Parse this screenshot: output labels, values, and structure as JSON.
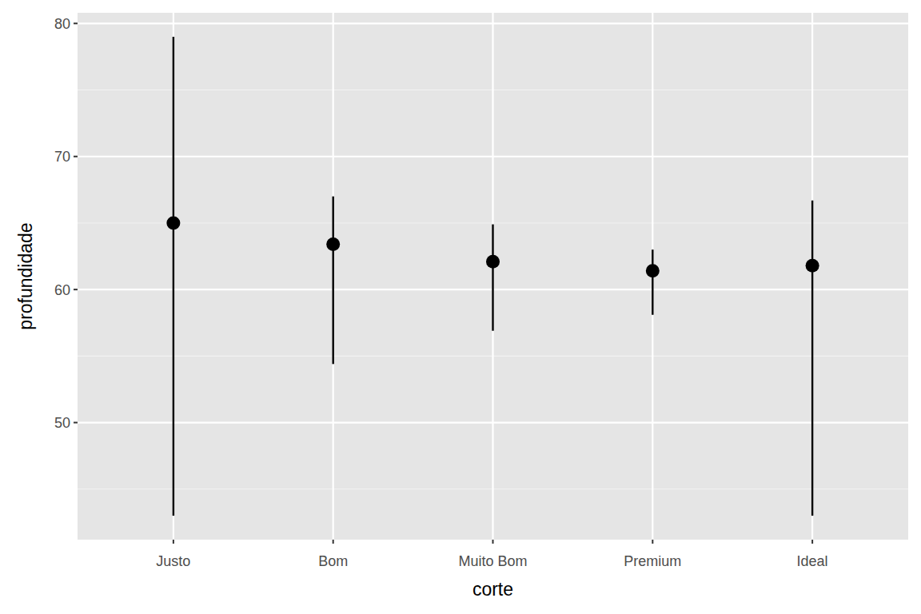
{
  "chart_data": {
    "type": "pointrange",
    "x_label": "corte",
    "y_label": "profundidade",
    "categories": [
      "Justo",
      "Bom",
      "Muito Bom",
      "Premium",
      "Ideal"
    ],
    "values": [
      65.0,
      63.4,
      62.1,
      61.4,
      61.8
    ],
    "ymin": [
      43,
      54.4,
      56.9,
      58.1,
      43
    ],
    "ymax": [
      79,
      67.0,
      64.9,
      63.0,
      66.7
    ],
    "color": "#000000",
    "ylim": [
      41.2,
      80.8
    ],
    "yticks": [
      50,
      60,
      70,
      80
    ],
    "grid": true
  }
}
